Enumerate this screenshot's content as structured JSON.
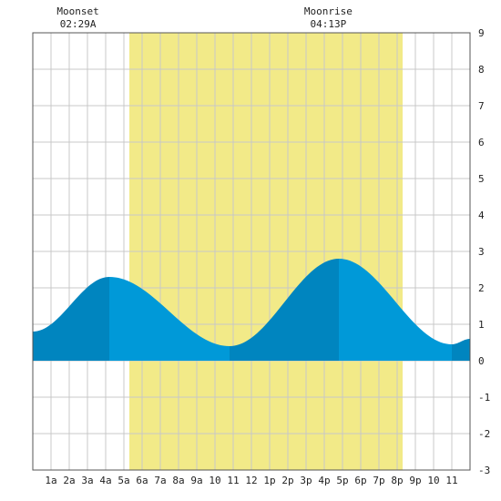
{
  "chart_data": {
    "type": "area",
    "title": "",
    "xlabel": "",
    "ylabel": "",
    "x_range_hours": [
      0,
      24
    ],
    "ylim": [
      -3,
      9
    ],
    "y_ticks": [
      -3,
      -2,
      -1,
      0,
      1,
      2,
      3,
      4,
      5,
      6,
      7,
      8,
      9
    ],
    "x_tick_labels": [
      "1a",
      "2a",
      "3a",
      "4a",
      "5a",
      "6a",
      "7a",
      "8a",
      "9a",
      "10",
      "11",
      "12",
      "1p",
      "2p",
      "3p",
      "4p",
      "5p",
      "6p",
      "7p",
      "8p",
      "9p",
      "10",
      "11"
    ],
    "x_tick_hours": [
      1,
      2,
      3,
      4,
      5,
      6,
      7,
      8,
      9,
      10,
      11,
      12,
      13,
      14,
      15,
      16,
      17,
      18,
      19,
      20,
      21,
      22,
      23
    ],
    "daylight": {
      "start_hour": 5.3,
      "end_hour": 20.3
    },
    "tide_extremes": [
      {
        "hour": 0.0,
        "height": 0.8,
        "kind": "start"
      },
      {
        "hour": 4.2,
        "height": 2.3,
        "kind": "high"
      },
      {
        "hour": 10.8,
        "height": 0.4,
        "kind": "low"
      },
      {
        "hour": 16.8,
        "height": 2.8,
        "kind": "high"
      },
      {
        "hour": 23.0,
        "height": 0.45,
        "kind": "low"
      },
      {
        "hour": 24.0,
        "height": 0.6,
        "kind": "end"
      }
    ],
    "rising_segments": [
      [
        0,
        4.2
      ],
      [
        10.8,
        16.8
      ],
      [
        23.0,
        24.0
      ]
    ],
    "annotations": [
      {
        "label": "Moonset",
        "time": "02:29A",
        "hour": 2.48
      },
      {
        "label": "Moonrise",
        "time": "04:13P",
        "hour": 16.22
      }
    ],
    "colors": {
      "daylight": "#f2ea88",
      "rising": "#0085bf",
      "falling": "#0099d8",
      "grid": "#c8c8c8",
      "border": "#555555"
    },
    "grid": true
  }
}
